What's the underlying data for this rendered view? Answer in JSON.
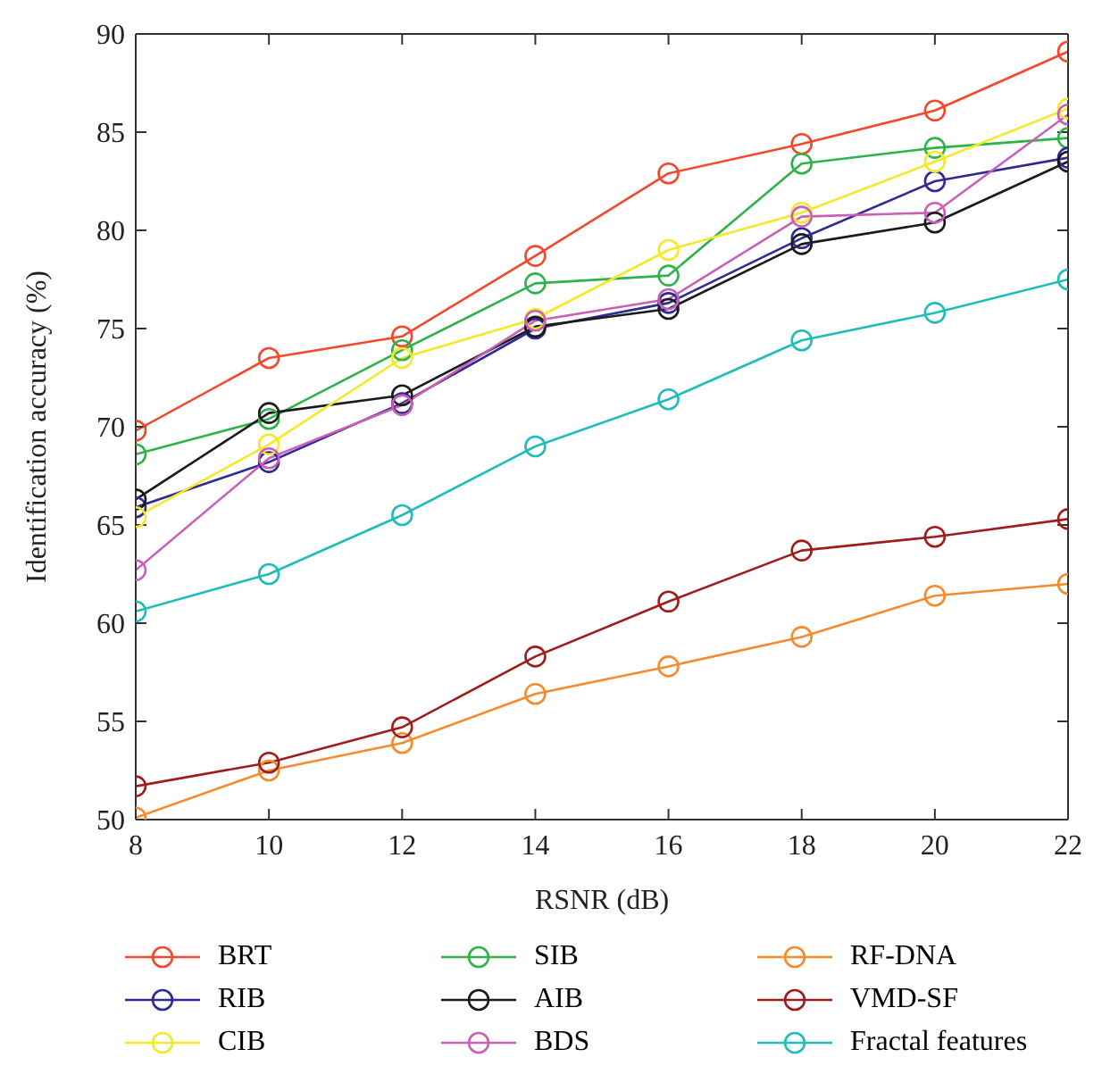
{
  "chart_data": {
    "type": "line",
    "xlabel": "RSNR (dB)",
    "ylabel": "Identification accuracy (%)",
    "x": [
      8,
      10,
      12,
      14,
      16,
      18,
      20,
      22
    ],
    "xlim": [
      8,
      22
    ],
    "xticks": [
      8,
      10,
      12,
      14,
      16,
      18,
      20,
      22
    ],
    "ylim": [
      50,
      90
    ],
    "yticks": [
      50,
      55,
      60,
      65,
      70,
      75,
      80,
      85,
      90
    ],
    "grid": false,
    "legend": "bottom",
    "marker": "circle",
    "line_style": "solid",
    "series": [
      {
        "name": "BRT",
        "color": "#f4472b",
        "values": [
          69.8,
          73.5,
          74.6,
          78.7,
          82.9,
          84.4,
          86.1,
          89.1
        ]
      },
      {
        "name": "SIB",
        "color": "#2eb24a",
        "values": [
          68.6,
          70.4,
          73.9,
          77.3,
          77.7,
          83.4,
          84.2,
          84.7
        ]
      },
      {
        "name": "RF-DNA",
        "color": "#f78a2a",
        "values": [
          50.1,
          52.5,
          53.9,
          56.4,
          57.8,
          59.3,
          61.4,
          62.0
        ]
      },
      {
        "name": "RIB",
        "color": "#2e2a96",
        "values": [
          65.9,
          68.2,
          71.2,
          75.0,
          76.3,
          79.6,
          82.5,
          83.7
        ]
      },
      {
        "name": "AIB",
        "color": "#1a1a1a",
        "values": [
          66.3,
          70.7,
          71.6,
          75.1,
          76.0,
          79.3,
          80.4,
          83.5
        ]
      },
      {
        "name": "VMD-SF",
        "color": "#a01c1c",
        "values": [
          51.7,
          52.9,
          54.7,
          58.3,
          61.1,
          63.7,
          64.4,
          65.3
        ]
      },
      {
        "name": "CIB",
        "color": "#f5e829",
        "values": [
          65.4,
          69.1,
          73.5,
          75.5,
          79.0,
          80.9,
          83.5,
          86.2
        ]
      },
      {
        "name": "BDS",
        "color": "#c95fb7",
        "values": [
          62.7,
          68.4,
          71.1,
          75.4,
          76.5,
          80.7,
          80.9,
          85.9
        ]
      },
      {
        "name": "Fractal features",
        "color": "#1fbdb9",
        "values": [
          60.6,
          62.5,
          65.5,
          69.0,
          71.4,
          74.4,
          75.8,
          77.5
        ]
      }
    ]
  }
}
